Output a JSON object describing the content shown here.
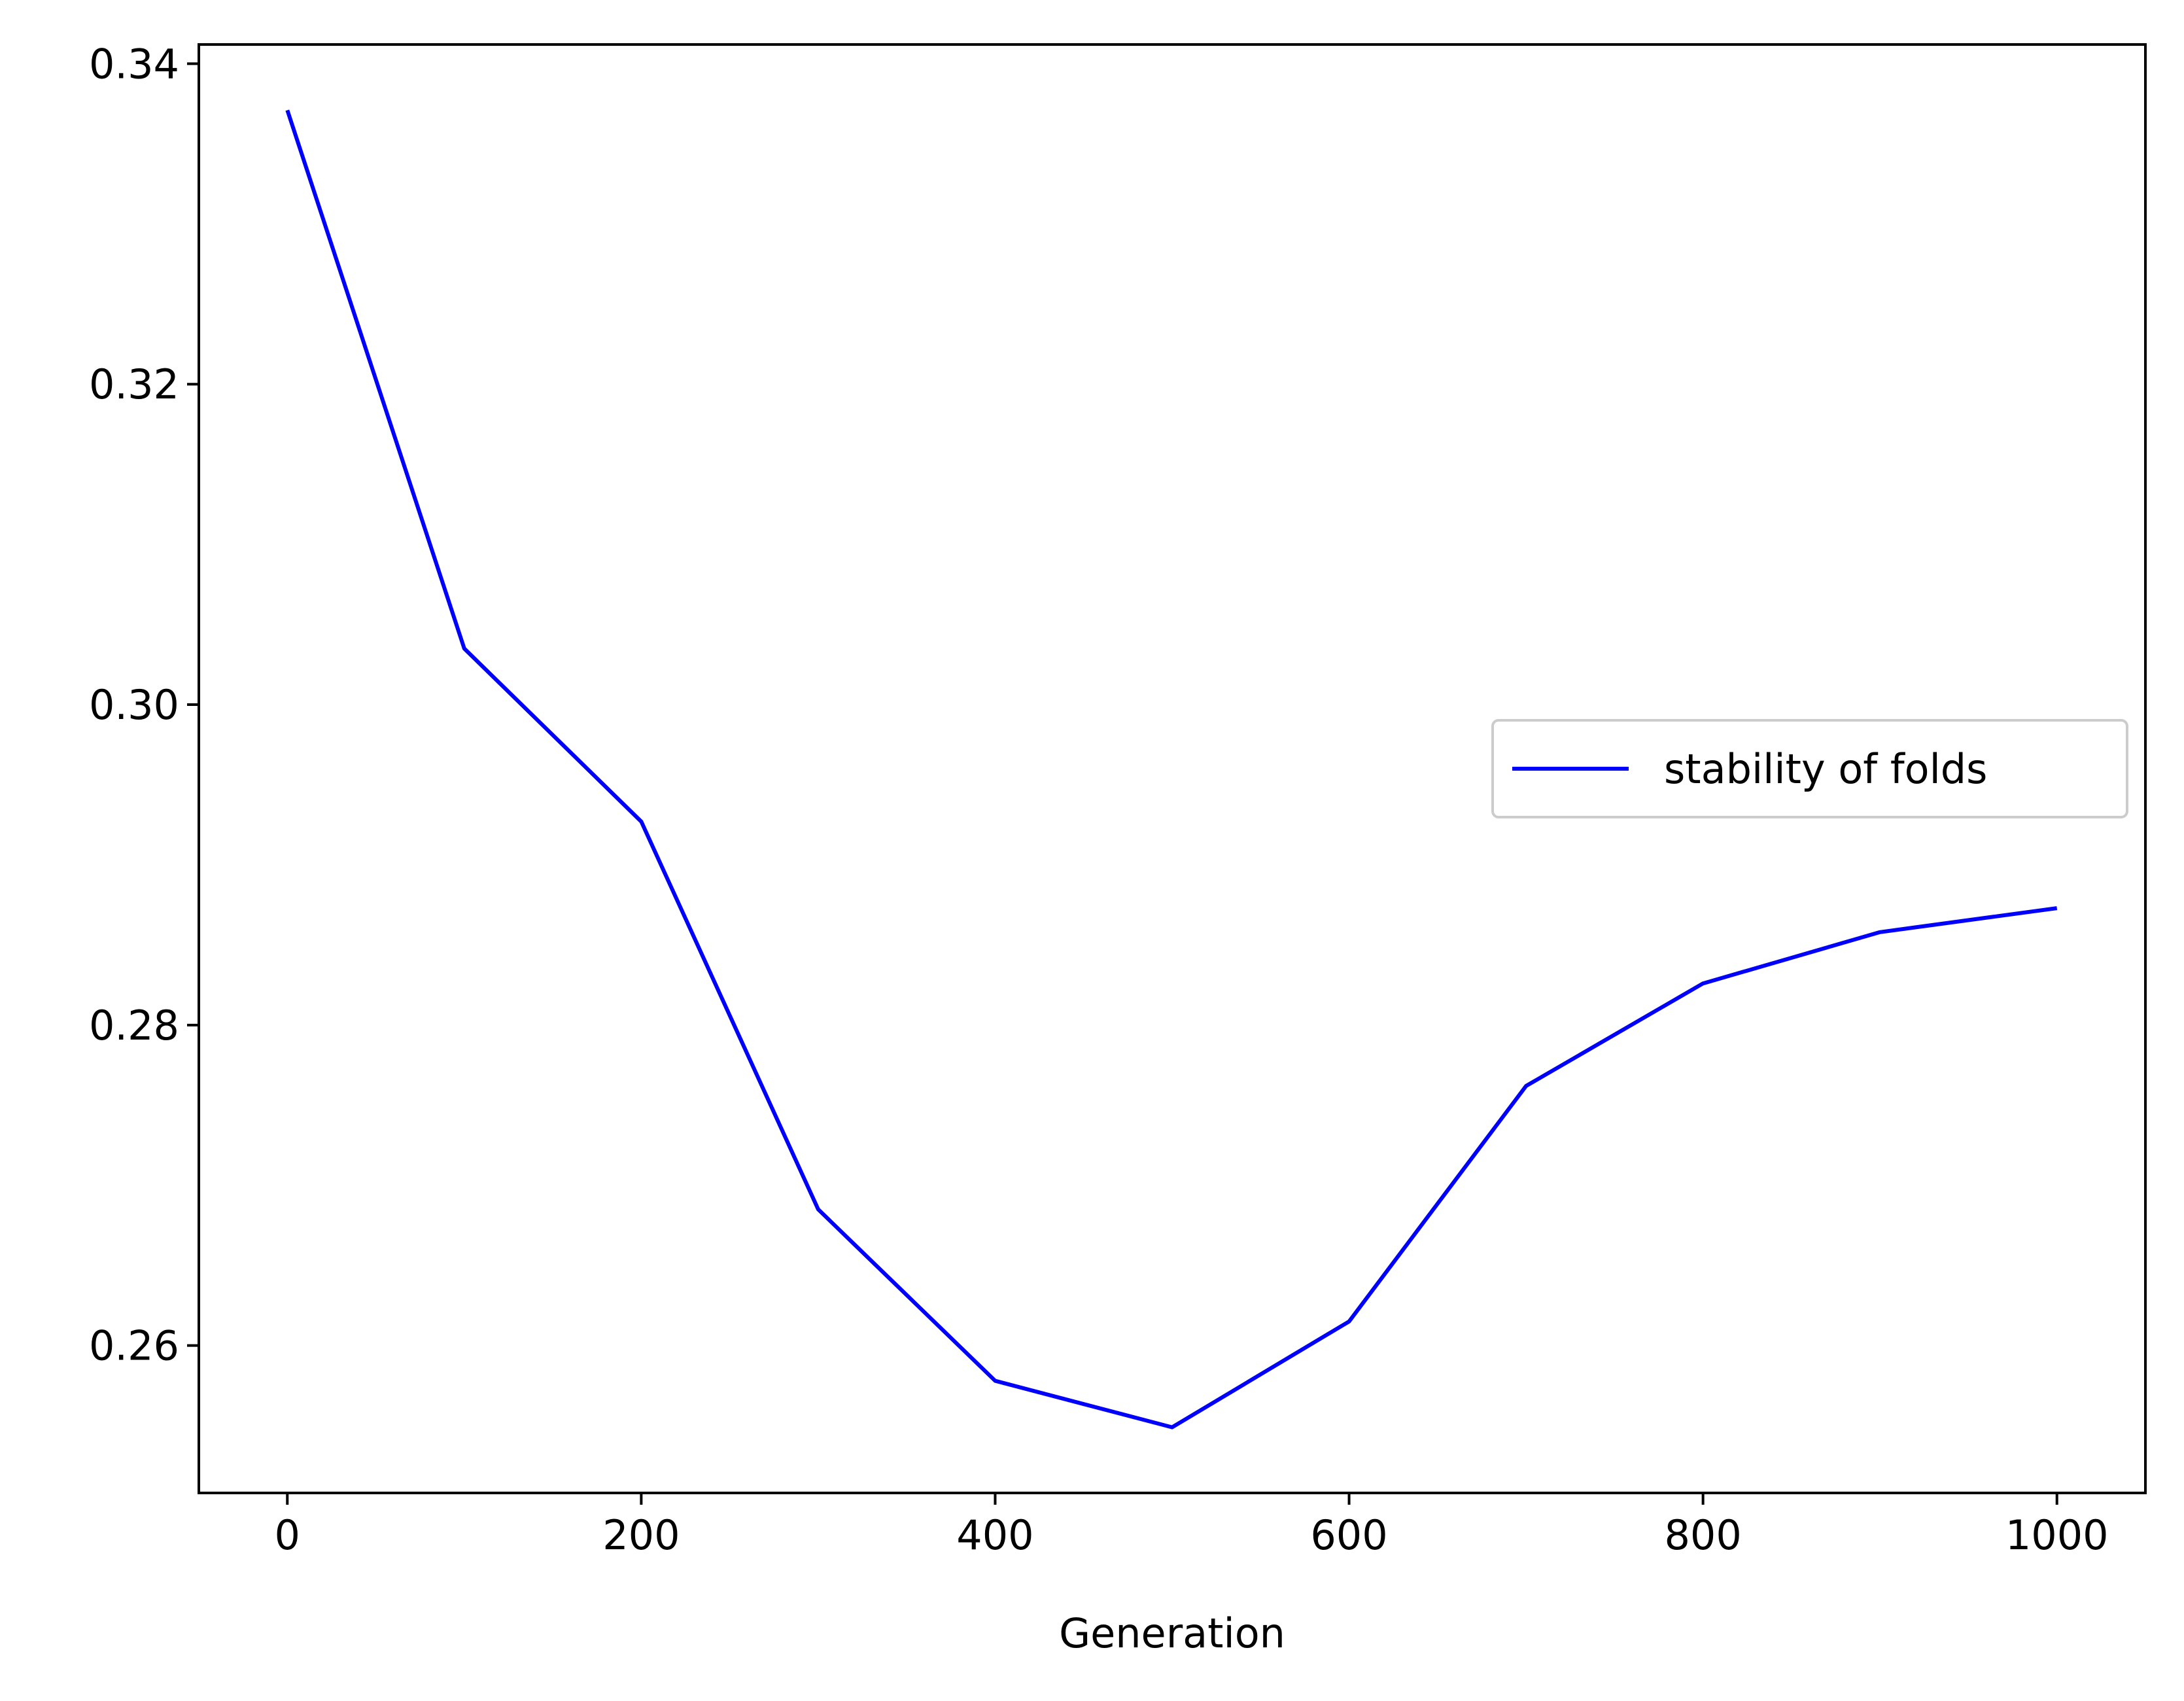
{
  "chart_data": {
    "type": "line",
    "title": "",
    "xlabel": "Generation",
    "ylabel": "",
    "x": [
      0,
      100,
      200,
      300,
      400,
      500,
      600,
      700,
      800,
      900,
      1000
    ],
    "series": [
      {
        "name": "stability of folds",
        "color": "#0000ff",
        "values": [
          0.3371,
          0.3035,
          0.2927,
          0.2685,
          0.2578,
          0.2549,
          0.2615,
          0.2762,
          0.2826,
          0.2858,
          0.2873
        ]
      }
    ],
    "xlim": [
      -50,
      1050
    ],
    "ylim": [
      0.2508,
      0.3412
    ],
    "xticks": [
      0,
      200,
      400,
      600,
      800,
      1000
    ],
    "xtick_labels": [
      "0",
      "200",
      "400",
      "600",
      "800",
      "1000"
    ],
    "yticks": [
      0.26,
      0.28,
      0.3,
      0.32,
      0.34
    ],
    "ytick_labels": [
      "0.26",
      "0.28",
      "0.30",
      "0.32",
      "0.34"
    ],
    "grid": false,
    "legend_position": "center-right"
  }
}
